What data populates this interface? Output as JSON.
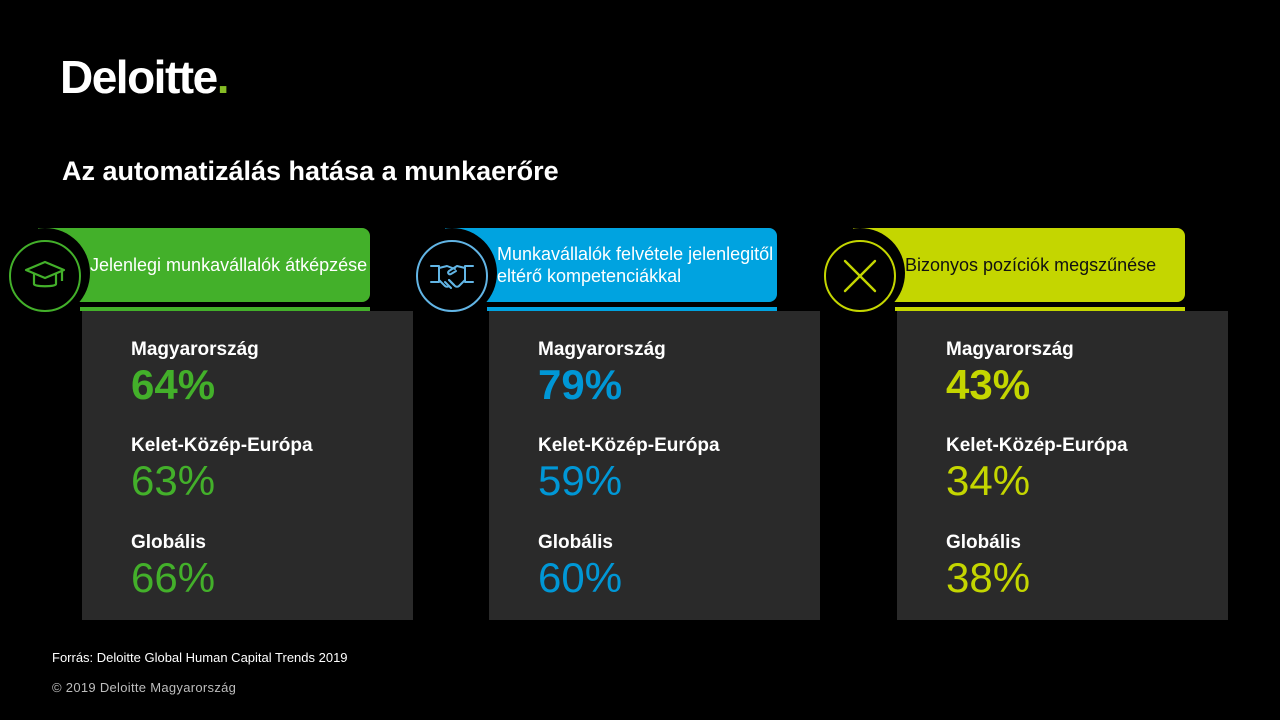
{
  "logo": {
    "text": "Deloitte",
    "dot": "."
  },
  "title": "Az automatizálás hatása a munkaerőre",
  "cards": [
    {
      "label": "Jelenlegi munkavállalók átképzése",
      "icon": "graduation-cap-icon",
      "color": "#43b02a",
      "metrics": [
        {
          "region": "Magyarország",
          "value": "64%"
        },
        {
          "region": "Kelet-Közép-Európa",
          "value": "63%"
        },
        {
          "region": "Globális",
          "value": "66%"
        }
      ]
    },
    {
      "label": "Munkavállalók felvétele jelenlegitől eltérő kompetenciákkal",
      "icon": "handshake-icon",
      "color": "#00a3e0",
      "metrics": [
        {
          "region": "Magyarország",
          "value": "79%"
        },
        {
          "region": "Kelet-Közép-Európa",
          "value": "59%"
        },
        {
          "region": "Globális",
          "value": "60%"
        }
      ]
    },
    {
      "label": "Bizonyos pozíciók megszűnése",
      "icon": "x-mark-icon",
      "color": "#c4d600",
      "metrics": [
        {
          "region": "Magyarország",
          "value": "43%"
        },
        {
          "region": "Kelet-Közép-Európa",
          "value": "34%"
        },
        {
          "region": "Globális",
          "value": "38%"
        }
      ]
    }
  ],
  "footer": {
    "source": "Forrás: Deloitte Global Human Capital Trends 2019",
    "copyright": "© 2019 Deloitte Magyarország"
  }
}
